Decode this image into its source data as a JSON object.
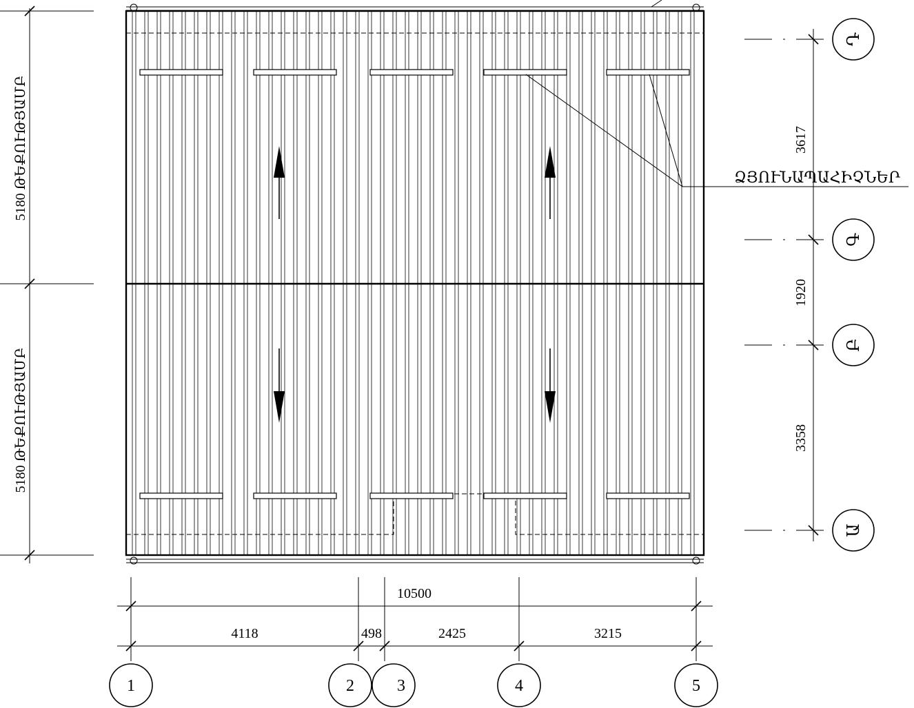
{
  "plan": {
    "side_label_top": "5180 ԹԵՔՈՒԹՅԱՄԲ",
    "side_label_bottom": "5180 ԹԵՔՈՒԹՅԱՄԲ",
    "callout_label": "ՁՅՈՒՆԱՊԱՀԻՉՆԵՐ",
    "snow_guards_per_row": 5,
    "slope_arrows": [
      "up",
      "up",
      "down",
      "down"
    ]
  },
  "dimensions": {
    "overall": "10500",
    "bays": [
      "4118",
      "498",
      "2425",
      "3215"
    ],
    "vertical": [
      "3617",
      "1920",
      "3358"
    ]
  },
  "axes": {
    "columns": [
      "1",
      "2",
      "3",
      "4",
      "5"
    ],
    "rows": [
      "Դ",
      "Գ",
      "Բ",
      "Ա"
    ]
  },
  "colors": {
    "line": "#000000",
    "background": "#ffffff"
  }
}
